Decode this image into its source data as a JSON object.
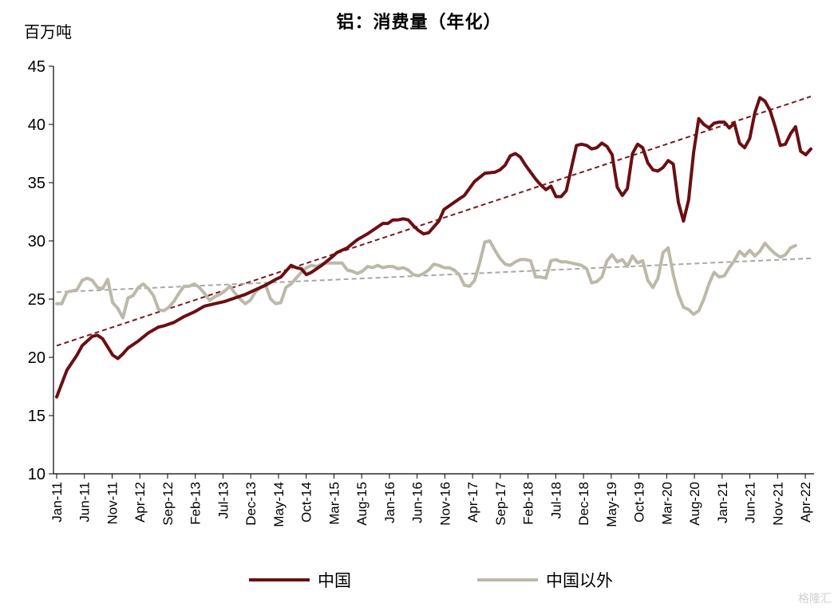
{
  "chart_data": {
    "type": "line",
    "title": "铝：消费量（年化）",
    "ylabel": "百万吨",
    "ylim": [
      10,
      45
    ],
    "yticks": [
      10,
      15,
      20,
      25,
      30,
      35,
      40,
      45
    ],
    "xrange": [
      "Jan-11",
      "Apr-22"
    ],
    "xtick_labels": [
      "Jan-11",
      "Jun-11",
      "Nov-11",
      "Apr-12",
      "Sep-12",
      "Feb-13",
      "Jul-13",
      "Dec-13",
      "May-14",
      "Oct-14",
      "Mar-15",
      "Aug-15",
      "Jan-16",
      "Jun-16",
      "Nov-16",
      "Apr-17",
      "Sep-17",
      "Feb-18",
      "Jul-18",
      "Dec-18",
      "May-19",
      "Oct-19",
      "Mar-20",
      "Aug-20",
      "Jan-21",
      "Jun-21",
      "Nov-21",
      "Apr-22"
    ],
    "grid": false,
    "legend": "bottom",
    "series": [
      {
        "name": "中国",
        "color": "#6b0f12",
        "values": [
          [
            0,
            16.6
          ],
          [
            2,
            18.9
          ],
          [
            4,
            20.2
          ],
          [
            5,
            21.0
          ],
          [
            7,
            21.8
          ],
          [
            8,
            21.9
          ],
          [
            9,
            21.6
          ],
          [
            10,
            20.9
          ],
          [
            11,
            20.2
          ],
          [
            12,
            19.9
          ],
          [
            13,
            20.3
          ],
          [
            14,
            20.8
          ],
          [
            16,
            21.4
          ],
          [
            18,
            22.1
          ],
          [
            20,
            22.6
          ],
          [
            21,
            22.7
          ],
          [
            23,
            23.0
          ],
          [
            25,
            23.5
          ],
          [
            27,
            23.9
          ],
          [
            29,
            24.4
          ],
          [
            31,
            24.6
          ],
          [
            33,
            24.8
          ],
          [
            35,
            25.1
          ],
          [
            37,
            25.4
          ],
          [
            39,
            25.8
          ],
          [
            41,
            26.2
          ],
          [
            43,
            26.7
          ],
          [
            44,
            26.9
          ],
          [
            46,
            27.9
          ],
          [
            47,
            27.7
          ],
          [
            48,
            27.6
          ],
          [
            49,
            27.1
          ],
          [
            50,
            27.3
          ],
          [
            52,
            27.9
          ],
          [
            54,
            28.6
          ],
          [
            55,
            29.0
          ],
          [
            57,
            29.4
          ],
          [
            59,
            30.1
          ],
          [
            61,
            30.6
          ],
          [
            62,
            30.9
          ],
          [
            64,
            31.5
          ],
          [
            65,
            31.5
          ],
          [
            66,
            31.8
          ],
          [
            67,
            31.8
          ],
          [
            68,
            31.9
          ],
          [
            69,
            31.8
          ],
          [
            70,
            31.3
          ],
          [
            71,
            30.9
          ],
          [
            72,
            30.6
          ],
          [
            73,
            30.7
          ],
          [
            75,
            31.7
          ],
          [
            76,
            32.7
          ],
          [
            78,
            33.3
          ],
          [
            79,
            33.6
          ],
          [
            80,
            33.9
          ],
          [
            82,
            35.1
          ],
          [
            84,
            35.8
          ],
          [
            86,
            35.9
          ],
          [
            87,
            36.1
          ],
          [
            88,
            36.5
          ],
          [
            89,
            37.3
          ],
          [
            90,
            37.5
          ],
          [
            91,
            37.2
          ],
          [
            92,
            36.5
          ],
          [
            94,
            35.3
          ],
          [
            95,
            34.8
          ],
          [
            96,
            34.4
          ],
          [
            97,
            34.7
          ],
          [
            98,
            33.8
          ],
          [
            99,
            33.8
          ],
          [
            100,
            34.3
          ],
          [
            102,
            38.2
          ],
          [
            103,
            38.3
          ],
          [
            104,
            38.2
          ],
          [
            105,
            37.9
          ],
          [
            106,
            38.0
          ],
          [
            107,
            38.4
          ],
          [
            108,
            38.1
          ],
          [
            109,
            37.4
          ],
          [
            110,
            34.6
          ],
          [
            111,
            33.9
          ],
          [
            112,
            34.5
          ],
          [
            113,
            37.5
          ],
          [
            114,
            38.3
          ],
          [
            115,
            38.0
          ],
          [
            116,
            36.7
          ],
          [
            117,
            36.1
          ],
          [
            118,
            36.0
          ],
          [
            119,
            36.3
          ],
          [
            120,
            36.9
          ],
          [
            121,
            36.6
          ],
          [
            122,
            33.3
          ],
          [
            123,
            31.7
          ],
          [
            124,
            33.5
          ],
          [
            125,
            37.6
          ],
          [
            126,
            40.5
          ],
          [
            127,
            40.0
          ],
          [
            128,
            39.7
          ],
          [
            129,
            40.1
          ],
          [
            130,
            40.2
          ],
          [
            131,
            40.2
          ],
          [
            132,
            39.7
          ],
          [
            133,
            40.1
          ],
          [
            134,
            38.4
          ],
          [
            135,
            38.0
          ],
          [
            136,
            38.8
          ],
          [
            137,
            41.0
          ],
          [
            138,
            42.3
          ],
          [
            139,
            42.0
          ],
          [
            140,
            41.2
          ],
          [
            141,
            39.8
          ],
          [
            142,
            38.2
          ],
          [
            143,
            38.3
          ],
          [
            144,
            39.2
          ],
          [
            145,
            39.8
          ],
          [
            146,
            37.7
          ],
          [
            147,
            37.4
          ],
          [
            148,
            37.9
          ]
        ],
        "trend": [
          [
            0,
            21.0
          ],
          [
            148,
            42.4
          ]
        ]
      },
      {
        "name": "中国以外",
        "color": "#bcb9a9",
        "values": [
          [
            0,
            24.6
          ],
          [
            1,
            24.6
          ],
          [
            2,
            25.6
          ],
          [
            4,
            25.8
          ],
          [
            5,
            26.6
          ],
          [
            6,
            26.8
          ],
          [
            7,
            26.6
          ],
          [
            8,
            26.0
          ],
          [
            9,
            25.9
          ],
          [
            10,
            26.7
          ],
          [
            11,
            24.7
          ],
          [
            12,
            24.2
          ],
          [
            13,
            23.4
          ],
          [
            14,
            25.1
          ],
          [
            15,
            25.3
          ],
          [
            16,
            26.0
          ],
          [
            17,
            26.3
          ],
          [
            18,
            25.9
          ],
          [
            19,
            25.3
          ],
          [
            20,
            24.1
          ],
          [
            21,
            24.0
          ],
          [
            22,
            24.3
          ],
          [
            23,
            24.8
          ],
          [
            24,
            25.5
          ],
          [
            25,
            26.1
          ],
          [
            26,
            26.1
          ],
          [
            27,
            26.3
          ],
          [
            28,
            26.0
          ],
          [
            29,
            25.5
          ],
          [
            30,
            24.9
          ],
          [
            31,
            25.2
          ],
          [
            32,
            25.4
          ],
          [
            33,
            25.7
          ],
          [
            34,
            26.1
          ],
          [
            35,
            25.5
          ],
          [
            36,
            25.0
          ],
          [
            37,
            24.6
          ],
          [
            38,
            24.9
          ],
          [
            39,
            25.6
          ],
          [
            40,
            26.0
          ],
          [
            41,
            26.2
          ],
          [
            42,
            25.0
          ],
          [
            43,
            24.6
          ],
          [
            44,
            24.7
          ],
          [
            45,
            26.0
          ],
          [
            46,
            26.3
          ],
          [
            47,
            26.8
          ],
          [
            48,
            27.3
          ],
          [
            49,
            27.7
          ],
          [
            50,
            27.9
          ],
          [
            51,
            27.8
          ],
          [
            52,
            28.0
          ],
          [
            53,
            28.1
          ],
          [
            54,
            28.1
          ],
          [
            55,
            28.1
          ],
          [
            56,
            28.1
          ],
          [
            57,
            27.5
          ],
          [
            58,
            27.4
          ],
          [
            59,
            27.2
          ],
          [
            60,
            27.4
          ],
          [
            61,
            27.8
          ],
          [
            62,
            27.7
          ],
          [
            63,
            27.9
          ],
          [
            64,
            27.7
          ],
          [
            65,
            27.8
          ],
          [
            66,
            27.8
          ],
          [
            67,
            27.6
          ],
          [
            68,
            27.7
          ],
          [
            69,
            27.5
          ],
          [
            70,
            27.1
          ],
          [
            71,
            27.0
          ],
          [
            72,
            27.2
          ],
          [
            73,
            27.5
          ],
          [
            74,
            28.0
          ],
          [
            75,
            27.9
          ],
          [
            76,
            27.7
          ],
          [
            77,
            27.7
          ],
          [
            78,
            27.5
          ],
          [
            79,
            27.1
          ],
          [
            80,
            26.2
          ],
          [
            81,
            26.1
          ],
          [
            82,
            26.6
          ],
          [
            83,
            28.1
          ],
          [
            84,
            29.9
          ],
          [
            85,
            30.0
          ],
          [
            86,
            29.2
          ],
          [
            87,
            28.5
          ],
          [
            88,
            28.0
          ],
          [
            89,
            27.9
          ],
          [
            90,
            28.2
          ],
          [
            91,
            28.4
          ],
          [
            92,
            28.4
          ],
          [
            93,
            28.3
          ],
          [
            94,
            26.9
          ],
          [
            95,
            26.9
          ],
          [
            96,
            26.8
          ],
          [
            97,
            28.3
          ],
          [
            98,
            28.4
          ],
          [
            99,
            28.2
          ],
          [
            100,
            28.2
          ],
          [
            101,
            28.1
          ],
          [
            102,
            28.0
          ],
          [
            103,
            27.9
          ],
          [
            104,
            27.6
          ],
          [
            105,
            26.4
          ],
          [
            106,
            26.5
          ],
          [
            107,
            26.9
          ],
          [
            108,
            28.3
          ],
          [
            109,
            28.8
          ],
          [
            110,
            28.2
          ],
          [
            111,
            28.4
          ],
          [
            112,
            27.8
          ],
          [
            113,
            28.7
          ],
          [
            114,
            28.1
          ],
          [
            115,
            28.3
          ],
          [
            116,
            26.6
          ],
          [
            117,
            26.0
          ],
          [
            118,
            26.8
          ],
          [
            119,
            29.0
          ],
          [
            120,
            29.4
          ],
          [
            121,
            27.1
          ],
          [
            122,
            25.4
          ],
          [
            123,
            24.3
          ],
          [
            124,
            24.1
          ],
          [
            125,
            23.7
          ],
          [
            126,
            24.0
          ],
          [
            127,
            25.0
          ],
          [
            128,
            26.3
          ],
          [
            129,
            27.3
          ],
          [
            130,
            26.9
          ],
          [
            131,
            27.0
          ],
          [
            132,
            27.7
          ],
          [
            133,
            28.3
          ],
          [
            134,
            29.1
          ],
          [
            135,
            28.7
          ],
          [
            136,
            29.2
          ],
          [
            137,
            28.7
          ],
          [
            138,
            29.1
          ],
          [
            139,
            29.8
          ],
          [
            140,
            29.3
          ],
          [
            141,
            28.9
          ],
          [
            142,
            28.6
          ],
          [
            143,
            28.8
          ],
          [
            144,
            29.4
          ],
          [
            145,
            29.6
          ]
        ],
        "trend": [
          [
            0,
            25.6
          ],
          [
            148,
            28.5
          ]
        ]
      }
    ]
  },
  "watermark": "格隆汇"
}
